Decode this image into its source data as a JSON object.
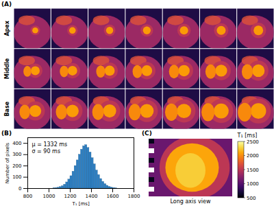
{
  "panel_labels": [
    "(A)",
    "(B)",
    "(C)"
  ],
  "maps": {
    "rows": [
      "Apex",
      "Middle",
      "Base"
    ],
    "slices_per_row": 7
  },
  "chart_data": {
    "type": "histogram",
    "bins": [
      1040,
      1060,
      1080,
      1100,
      1120,
      1140,
      1160,
      1180,
      1200,
      1220,
      1240,
      1260,
      1280,
      1300,
      1320,
      1340,
      1360,
      1380,
      1400,
      1420,
      1440,
      1460,
      1480,
      1500,
      1520,
      1540,
      1560,
      1580,
      1600,
      1620,
      1640
    ],
    "counts": [
      3,
      5,
      8,
      14,
      22,
      35,
      55,
      80,
      110,
      150,
      200,
      250,
      300,
      345,
      375,
      385,
      360,
      320,
      270,
      215,
      160,
      120,
      85,
      60,
      40,
      25,
      15,
      9,
      5,
      2
    ],
    "color": "#2f7fc1",
    "xlabel": "T₁ [ms]",
    "ylabel": "Number of pixels",
    "xlim": [
      800,
      1800
    ],
    "xticks": [
      800,
      1000,
      1200,
      1400,
      1600,
      1800
    ],
    "ylim": [
      0,
      450
    ],
    "yticks": [
      0,
      100,
      200,
      300,
      400
    ],
    "annotations": [
      "μ = 1332 ms",
      "σ = 90 ms"
    ]
  },
  "long_axis": {
    "caption": "Long axis view",
    "colorbar": {
      "label": "T₁ [ms]",
      "range": [
        500,
        2500
      ],
      "ticks": [
        500,
        1000,
        1500,
        2000,
        2500
      ]
    }
  }
}
